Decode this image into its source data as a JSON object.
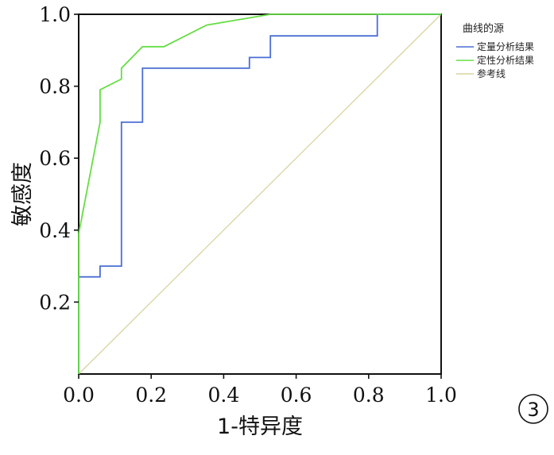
{
  "chart_data": {
    "type": "line",
    "title": "",
    "xlabel": "1-特异度",
    "ylabel": "敏感度",
    "xlim": [
      0,
      1
    ],
    "ylim": [
      0,
      1
    ],
    "x_ticks": [
      "0.0",
      "0.2",
      "0.4",
      "0.6",
      "0.8",
      "1.0"
    ],
    "y_ticks": [
      "0.2",
      "0.4",
      "0.6",
      "0.8",
      "1.0"
    ],
    "grid": false,
    "legend": {
      "title": "曲线的源",
      "position": "top-right"
    },
    "series": [
      {
        "name": "定量分析结果",
        "color": "#4a6fd4",
        "points": [
          [
            0,
            0
          ],
          [
            0,
            0.27
          ],
          [
            0.059,
            0.27
          ],
          [
            0.059,
            0.3
          ],
          [
            0.118,
            0.3
          ],
          [
            0.118,
            0.7
          ],
          [
            0.176,
            0.7
          ],
          [
            0.176,
            0.85
          ],
          [
            0.471,
            0.85
          ],
          [
            0.471,
            0.88
          ],
          [
            0.529,
            0.88
          ],
          [
            0.529,
            0.94
          ],
          [
            0.824,
            0.94
          ],
          [
            0.824,
            1.0
          ],
          [
            1.0,
            1.0
          ]
        ]
      },
      {
        "name": "定性分析结果",
        "color": "#66dd44",
        "points": [
          [
            0,
            0
          ],
          [
            0,
            0.39
          ],
          [
            0.059,
            0.7
          ],
          [
            0.059,
            0.79
          ],
          [
            0.118,
            0.82
          ],
          [
            0.118,
            0.85
          ],
          [
            0.176,
            0.91
          ],
          [
            0.235,
            0.91
          ],
          [
            0.353,
            0.97
          ],
          [
            0.529,
            1.0
          ],
          [
            1.0,
            1.0
          ]
        ]
      },
      {
        "name": "参考线",
        "color": "#d8d4a0",
        "points": [
          [
            0,
            0
          ],
          [
            1,
            1
          ]
        ]
      }
    ]
  },
  "badge": "3"
}
